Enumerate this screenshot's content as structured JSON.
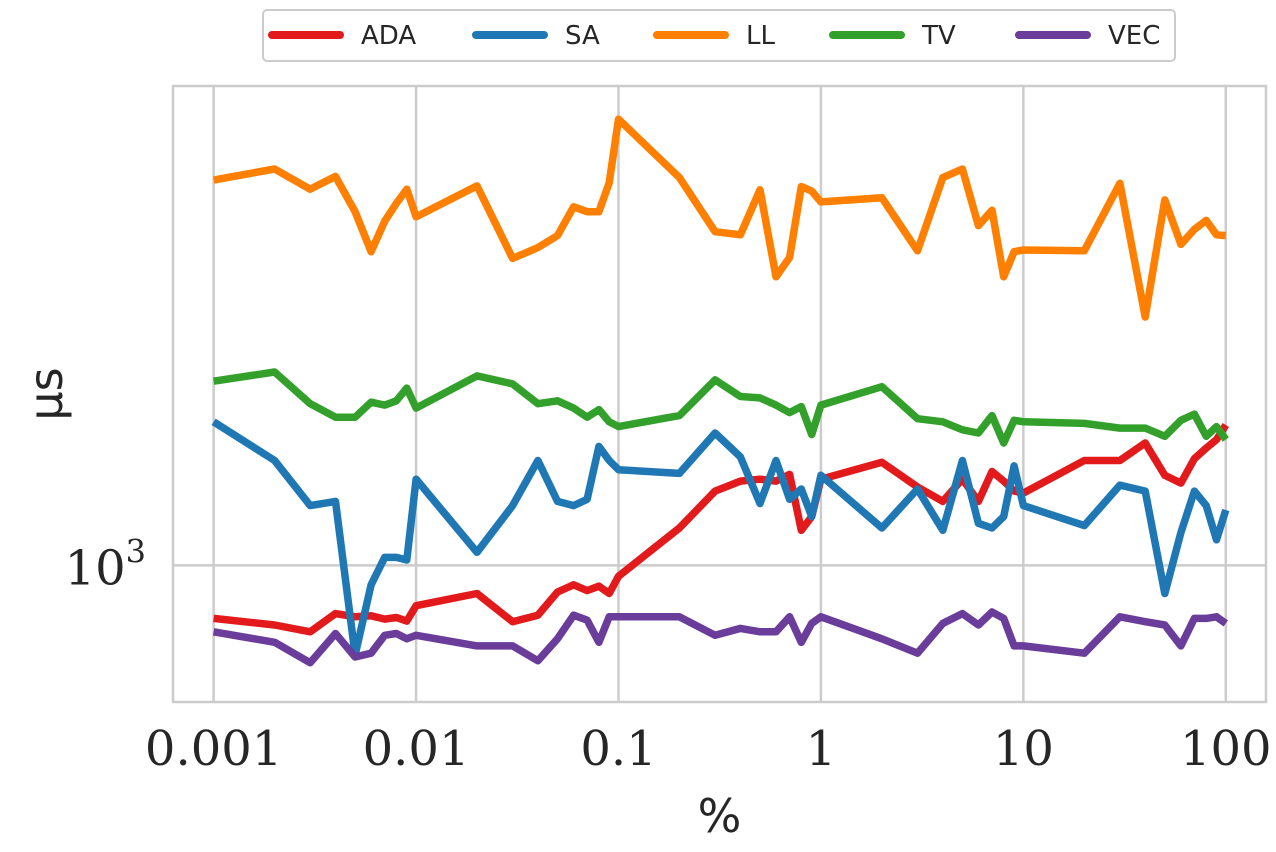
{
  "chart_data": {
    "type": "line",
    "xlabel": "%",
    "ylabel": "μs",
    "x_scale": "log",
    "y_scale": "log",
    "xlim": [
      0.00063,
      158
    ],
    "ylim": [
      600,
      6000
    ],
    "x_ticks": [
      {
        "value": 0.001,
        "label": "0.001"
      },
      {
        "value": 0.01,
        "label": "0.01"
      },
      {
        "value": 0.1,
        "label": "0.1"
      },
      {
        "value": 1,
        "label": "1"
      },
      {
        "value": 10,
        "label": "10"
      },
      {
        "value": 100,
        "label": "100"
      }
    ],
    "y_ticks": [
      {
        "value": 1000,
        "base": "10",
        "exp": "3"
      }
    ],
    "grid": true,
    "legend_position": "top-center",
    "series": [
      {
        "name": "ADA",
        "color": "#e31a1c",
        "x": [
          0.001,
          0.002,
          0.003,
          0.004,
          0.005,
          0.006,
          0.007,
          0.008,
          0.009,
          0.01,
          0.02,
          0.03,
          0.04,
          0.05,
          0.06,
          0.07,
          0.08,
          0.09,
          0.1,
          0.2,
          0.3,
          0.4,
          0.5,
          0.6,
          0.7,
          0.8,
          0.9,
          1,
          2,
          3,
          4,
          5,
          6,
          7,
          8,
          9,
          10,
          20,
          30,
          40,
          50,
          60,
          70,
          80,
          90,
          100
        ],
        "y": [
          820,
          800,
          780,
          835,
          825,
          828,
          818,
          823,
          812,
          860,
          900,
          810,
          830,
          905,
          930,
          910,
          925,
          900,
          960,
          1150,
          1320,
          1370,
          1380,
          1370,
          1405,
          1140,
          1200,
          1380,
          1470,
          1340,
          1270,
          1380,
          1270,
          1420,
          1370,
          1320,
          1310,
          1480,
          1480,
          1580,
          1400,
          1360,
          1490,
          1550,
          1600,
          1690
        ]
      },
      {
        "name": "SA",
        "color": "#1f78b4",
        "x": [
          0.001,
          0.002,
          0.003,
          0.004,
          0.005,
          0.006,
          0.007,
          0.008,
          0.009,
          0.01,
          0.02,
          0.03,
          0.04,
          0.05,
          0.06,
          0.07,
          0.08,
          0.09,
          0.1,
          0.2,
          0.3,
          0.4,
          0.5,
          0.6,
          0.7,
          0.8,
          0.9,
          1,
          2,
          3,
          4,
          5,
          6,
          7,
          8,
          9,
          10,
          20,
          30,
          40,
          50,
          60,
          70,
          80,
          90,
          100
        ],
        "y": [
          1710,
          1480,
          1250,
          1270,
          715,
          930,
          1030,
          1030,
          1020,
          1380,
          1050,
          1250,
          1480,
          1270,
          1250,
          1280,
          1560,
          1480,
          1430,
          1410,
          1640,
          1500,
          1260,
          1480,
          1280,
          1330,
          1200,
          1400,
          1150,
          1330,
          1140,
          1480,
          1170,
          1150,
          1200,
          1450,
          1250,
          1160,
          1350,
          1320,
          900,
          1130,
          1320,
          1250,
          1100,
          1230
        ]
      },
      {
        "name": "LL",
        "color": "#ff7f00",
        "x": [
          0.001,
          0.002,
          0.003,
          0.004,
          0.005,
          0.006,
          0.007,
          0.008,
          0.009,
          0.01,
          0.02,
          0.03,
          0.04,
          0.05,
          0.06,
          0.07,
          0.08,
          0.09,
          0.1,
          0.2,
          0.3,
          0.4,
          0.5,
          0.6,
          0.7,
          0.8,
          0.9,
          1,
          2,
          3,
          4,
          5,
          6,
          7,
          8,
          9,
          10,
          20,
          30,
          40,
          50,
          60,
          70,
          80,
          90,
          100
        ],
        "y": [
          4220,
          4400,
          4080,
          4280,
          3750,
          3230,
          3620,
          3870,
          4080,
          3680,
          4130,
          3150,
          3280,
          3430,
          3820,
          3750,
          3750,
          4180,
          5300,
          4260,
          3480,
          3440,
          4070,
          2940,
          3160,
          4120,
          4050,
          3890,
          3950,
          3240,
          4260,
          4400,
          3560,
          3770,
          2940,
          3230,
          3250,
          3240,
          4170,
          2530,
          3920,
          3320,
          3510,
          3630,
          3440,
          3430
        ]
      },
      {
        "name": "TV",
        "color": "#33a02c",
        "x": [
          0.001,
          0.002,
          0.003,
          0.004,
          0.005,
          0.006,
          0.007,
          0.008,
          0.009,
          0.01,
          0.02,
          0.03,
          0.04,
          0.05,
          0.06,
          0.07,
          0.08,
          0.09,
          0.1,
          0.2,
          0.3,
          0.4,
          0.5,
          0.6,
          0.7,
          0.8,
          0.9,
          1,
          2,
          3,
          4,
          5,
          6,
          7,
          8,
          9,
          10,
          20,
          30,
          40,
          50,
          60,
          70,
          80,
          90,
          100
        ],
        "y": [
          1990,
          2060,
          1830,
          1740,
          1740,
          1840,
          1820,
          1850,
          1940,
          1800,
          2030,
          1970,
          1830,
          1850,
          1800,
          1740,
          1790,
          1710,
          1680,
          1750,
          2000,
          1880,
          1870,
          1820,
          1770,
          1810,
          1630,
          1820,
          1950,
          1730,
          1710,
          1660,
          1640,
          1750,
          1580,
          1720,
          1710,
          1700,
          1670,
          1670,
          1620,
          1720,
          1760,
          1620,
          1680,
          1600
        ]
      },
      {
        "name": "VEC",
        "color": "#6a3d9a",
        "x": [
          0.001,
          0.002,
          0.003,
          0.004,
          0.005,
          0.006,
          0.007,
          0.008,
          0.009,
          0.01,
          0.02,
          0.03,
          0.04,
          0.05,
          0.06,
          0.07,
          0.08,
          0.09,
          0.1,
          0.2,
          0.3,
          0.4,
          0.5,
          0.6,
          0.7,
          0.8,
          0.9,
          1,
          2,
          3,
          4,
          5,
          6,
          7,
          8,
          9,
          10,
          20,
          30,
          40,
          50,
          60,
          70,
          80,
          90,
          100
        ],
        "y": [
          780,
          750,
          695,
          775,
          710,
          720,
          770,
          775,
          760,
          770,
          740,
          740,
          700,
          760,
          830,
          815,
          750,
          825,
          825,
          825,
          770,
          790,
          780,
          780,
          825,
          750,
          805,
          825,
          760,
          720,
          805,
          835,
          800,
          840,
          820,
          740,
          740,
          720,
          825,
          810,
          800,
          740,
          820,
          820,
          825,
          805
        ]
      }
    ]
  }
}
